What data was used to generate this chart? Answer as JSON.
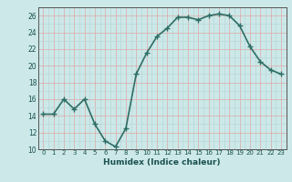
{
  "x": [
    0,
    1,
    2,
    3,
    4,
    5,
    6,
    7,
    8,
    9,
    10,
    11,
    12,
    13,
    14,
    15,
    16,
    17,
    18,
    19,
    20,
    21,
    22,
    23
  ],
  "y": [
    14.2,
    14.2,
    16.0,
    14.8,
    16.0,
    13.0,
    11.0,
    10.3,
    12.5,
    19.0,
    21.5,
    23.5,
    24.5,
    25.8,
    25.8,
    25.5,
    26.0,
    26.2,
    26.0,
    24.8,
    22.3,
    20.5,
    19.5,
    19.0
  ],
  "xlabel": "Humidex (Indice chaleur)",
  "ylim": [
    10,
    27
  ],
  "xlim": [
    -0.5,
    23.5
  ],
  "yticks": [
    10,
    12,
    14,
    16,
    18,
    20,
    22,
    24,
    26
  ],
  "xticks": [
    0,
    1,
    2,
    3,
    4,
    5,
    6,
    7,
    8,
    9,
    10,
    11,
    12,
    13,
    14,
    15,
    16,
    17,
    18,
    19,
    20,
    21,
    22,
    23
  ],
  "xtick_labels": [
    "0",
    "1",
    "2",
    "3",
    "4",
    "5",
    "6",
    "7",
    "8",
    "9",
    "10",
    "11",
    "12",
    "13",
    "14",
    "15",
    "16",
    "17",
    "18",
    "19",
    "20",
    "21",
    "22",
    "23"
  ],
  "line_color": "#2e6e65",
  "marker": "+",
  "marker_size": 4,
  "bg_color": "#cce8e8",
  "minor_grid_color": "#b8d8d8",
  "major_grid_color": "#dda8a8",
  "line_width": 1.2
}
